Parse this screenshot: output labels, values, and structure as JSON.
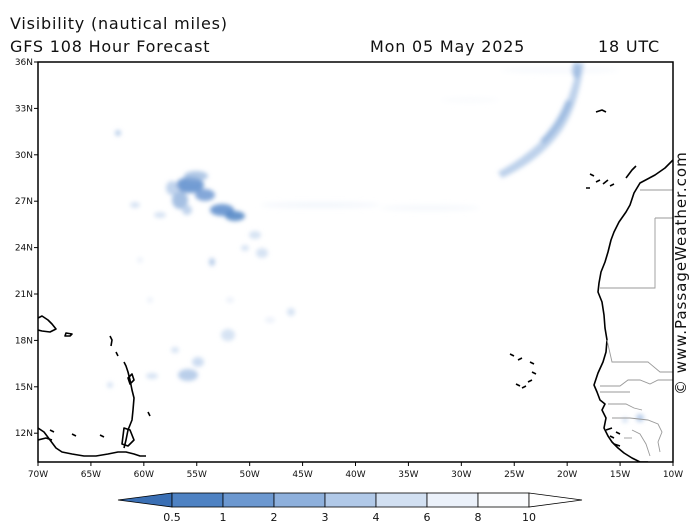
{
  "title": "Visibility (nautical miles)",
  "subtitle": "GFS 108 Hour Forecast",
  "date": "Mon 05 May 2025",
  "time": "18 UTC",
  "credit": "© www.PassageWeather.com",
  "lat_labels": [
    "36N",
    "33N",
    "30N",
    "27N",
    "24N",
    "21N",
    "18N",
    "15N",
    "12N"
  ],
  "lon_labels": [
    "70W",
    "65W",
    "60W",
    "55W",
    "50W",
    "45W",
    "40W",
    "35W",
    "30W",
    "25W",
    "20W",
    "15W",
    "10W"
  ],
  "colorbar": {
    "labels": [
      "0.5",
      "1",
      "2",
      "3",
      "4",
      "6",
      "8",
      "10"
    ],
    "colors": [
      "#3a6fb4",
      "#4e82c3",
      "#6c98d0",
      "#8eb0dc",
      "#b1c9e8",
      "#d2e0f2",
      "#ebf1fa",
      "#fbfcfe",
      "#ffffff"
    ]
  },
  "colors": {
    "land_outline": "#000000",
    "border": "#9a9a9a",
    "fog_dense": "#5b8bcb",
    "fog_light": "#c6d8ef"
  }
}
